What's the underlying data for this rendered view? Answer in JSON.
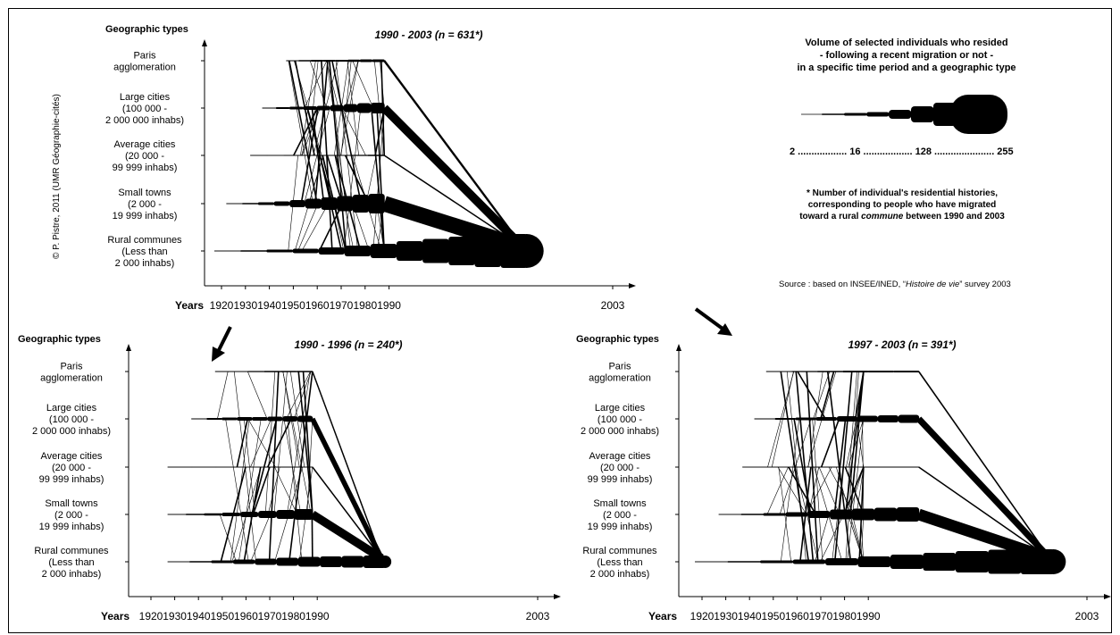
{
  "charts": [
    {
      "id": "main",
      "title": "1990 - 2003 (n = 631*)"
    },
    {
      "id": "left",
      "title": "1990 - 1996 (n = 240*)"
    },
    {
      "id": "right",
      "title": "1997 - 2003 (n = 391*)"
    }
  ],
  "geographic_types_label": "Geographic types",
  "years_label": "Years",
  "categories": [
    [
      "Paris",
      "agglomeration"
    ],
    [
      "Large cities",
      "(100 000 -",
      "2 000 000 inhabs)"
    ],
    [
      "Average cities",
      "(20 000 -",
      "99 999 inhabs)"
    ],
    [
      "Small towns",
      "(2 000 -",
      "19 999 inhabs)"
    ],
    [
      "Rural communes",
      "(Less than",
      "2 000 inhabs)"
    ]
  ],
  "x_ticks": [
    "1920",
    "1930",
    "1940",
    "1950",
    "1960",
    "1970",
    "1980",
    "1990",
    "2003"
  ],
  "legend": {
    "title_lines": [
      "Volume of  selected individuals who resided",
      "- following a recent migration or not -",
      "in a specific time period and a geographic type"
    ],
    "scale": [
      "2",
      "16",
      "128",
      "255"
    ],
    "scale_line": "2 .................. 16 .................. 128 ...................... 255"
  },
  "footnote": [
    "* Number of individual's residential histories,",
    "corresponding to people who have migrated",
    "toward a rural commune between 1990 and 2003"
  ],
  "source": {
    "prefix": "Source :  based on INSEE/INED, “",
    "italic": "Histoire de vie",
    "suffix": "” survey 2003"
  },
  "copyright": "© P. Pistre, 2011 (UMR Géographie-cités)",
  "chart_data": [
    {
      "type": "flow",
      "title": "1990 - 2003 (n = 631*)",
      "xlabel": "Years",
      "ylabel": "Geographic types",
      "categories": [
        "Paris agglomeration",
        "Large cities",
        "Average cities",
        "Small towns",
        "Rural communes"
      ],
      "x_ticks": [
        "1920",
        "1930",
        "1940",
        "1950",
        "1960",
        "1970",
        "1980",
        "1990",
        "2003"
      ],
      "series": [
        {
          "row": 0,
          "start": 1947,
          "end": 1988,
          "w": [
            1,
            1.5,
            2,
            2,
            2,
            2.5,
            3,
            3
          ]
        },
        {
          "row": 1,
          "start": 1937,
          "end": 1988,
          "w": [
            1,
            2,
            3,
            4,
            5,
            7,
            9,
            11,
            12
          ]
        },
        {
          "row": 2,
          "start": 1932,
          "end": 1988,
          "w": [
            0.5,
            0.8,
            1,
            1,
            1,
            1,
            1.2,
            1.5
          ]
        },
        {
          "row": 3,
          "start": 1922,
          "end": 1988,
          "w": [
            0.8,
            1.5,
            3,
            5,
            8,
            11,
            14,
            17,
            20,
            22
          ]
        },
        {
          "row": 4,
          "start": 1917,
          "end": 1998,
          "w": [
            0.8,
            1.5,
            3,
            5,
            8,
            12,
            16,
            22,
            27,
            32,
            36,
            38
          ]
        }
      ]
    },
    {
      "type": "flow",
      "title": "1990 - 1996 (n = 240*)",
      "xlabel": "Years",
      "ylabel": "Geographic types",
      "categories": [
        "Paris agglomeration",
        "Large cities",
        "Average cities",
        "Small towns",
        "Rural communes"
      ],
      "x_ticks": [
        "1920",
        "1930",
        "1940",
        "1950",
        "1960",
        "1970",
        "1980",
        "1990",
        "2003"
      ],
      "series": [
        {
          "row": 0,
          "start": 1947,
          "end": 1988,
          "w": [
            1,
            1,
            1.2,
            1.5,
            1.5,
            1.5
          ]
        },
        {
          "row": 1,
          "start": 1937,
          "end": 1988,
          "w": [
            1,
            2,
            3,
            4,
            4,
            5,
            6,
            7
          ]
        },
        {
          "row": 2,
          "start": 1927,
          "end": 1988,
          "w": [
            0.5,
            0.8,
            0.8,
            0.8,
            1,
            1
          ]
        },
        {
          "row": 3,
          "start": 1927,
          "end": 1988,
          "w": [
            0.8,
            1.5,
            2.5,
            4,
            6,
            8,
            10,
            12
          ]
        },
        {
          "row": 4,
          "start": 1927,
          "end": 1994,
          "w": [
            0.8,
            1.5,
            3,
            5,
            7,
            9,
            11,
            12,
            13,
            14
          ]
        }
      ]
    },
    {
      "type": "flow",
      "title": "1997 - 2003 (n = 391*)",
      "xlabel": "Years",
      "ylabel": "Geographic types",
      "categories": [
        "Paris agglomeration",
        "Large cities",
        "Average cities",
        "Small towns",
        "Rural communes"
      ],
      "x_ticks": [
        "1920",
        "1930",
        "1940",
        "1950",
        "1960",
        "1970",
        "1980",
        "1990",
        "2003"
      ],
      "series": [
        {
          "row": 0,
          "start": 1947,
          "end": 1993,
          "w": [
            1,
            1.2,
            1.5,
            2,
            2,
            2
          ]
        },
        {
          "row": 1,
          "start": 1942,
          "end": 1993,
          "w": [
            1,
            2,
            3,
            4,
            6,
            7,
            8,
            9
          ]
        },
        {
          "row": 2,
          "start": 1937,
          "end": 1993,
          "w": [
            0.5,
            0.8,
            1,
            1,
            1
          ]
        },
        {
          "row": 3,
          "start": 1927,
          "end": 1993,
          "w": [
            0.8,
            1.5,
            3,
            5,
            8,
            11,
            13,
            15,
            16
          ]
        },
        {
          "row": 4,
          "start": 1917,
          "end": 2001,
          "w": [
            0.8,
            1.5,
            3,
            5,
            8,
            12,
            16,
            20,
            24,
            27,
            28
          ]
        }
      ]
    }
  ]
}
